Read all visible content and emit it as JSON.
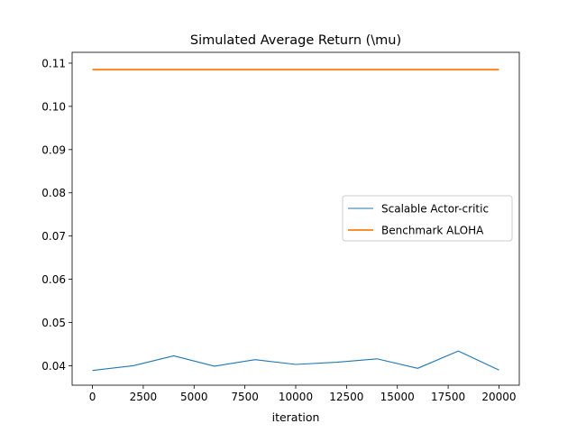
{
  "chart_data": {
    "type": "line",
    "title": "Simulated Average Return (\\mu)",
    "xlabel": "iteration",
    "ylabel": "",
    "xlim": [
      -1000,
      21000
    ],
    "ylim": [
      0.0355,
      0.1125
    ],
    "xticks": [
      0,
      2500,
      5000,
      7500,
      10000,
      12500,
      15000,
      17500,
      20000
    ],
    "xtick_labels": [
      "0",
      "2500",
      "5000",
      "7500",
      "10000",
      "12500",
      "15000",
      "17500",
      "20000"
    ],
    "yticks": [
      0.04,
      0.05,
      0.06,
      0.07,
      0.08,
      0.09,
      0.1,
      0.11
    ],
    "ytick_labels": [
      "0.04",
      "0.05",
      "0.06",
      "0.07",
      "0.08",
      "0.09",
      "0.10",
      "0.11"
    ],
    "grid": false,
    "legend_position": "center-right",
    "series": [
      {
        "name": "Scalable Actor-critic",
        "color": "#1f77b4",
        "x": [
          0,
          2000,
          4000,
          6000,
          8000,
          10000,
          12000,
          14000,
          16000,
          18000,
          20000
        ],
        "y": [
          0.0389,
          0.04,
          0.0423,
          0.0399,
          0.0414,
          0.0403,
          0.0408,
          0.0416,
          0.0394,
          0.0434,
          0.039
        ]
      },
      {
        "name": "Benchmark ALOHA",
        "color": "#ff7f0e",
        "x": [
          0,
          20000
        ],
        "y": [
          0.1085,
          0.1085
        ]
      }
    ]
  }
}
